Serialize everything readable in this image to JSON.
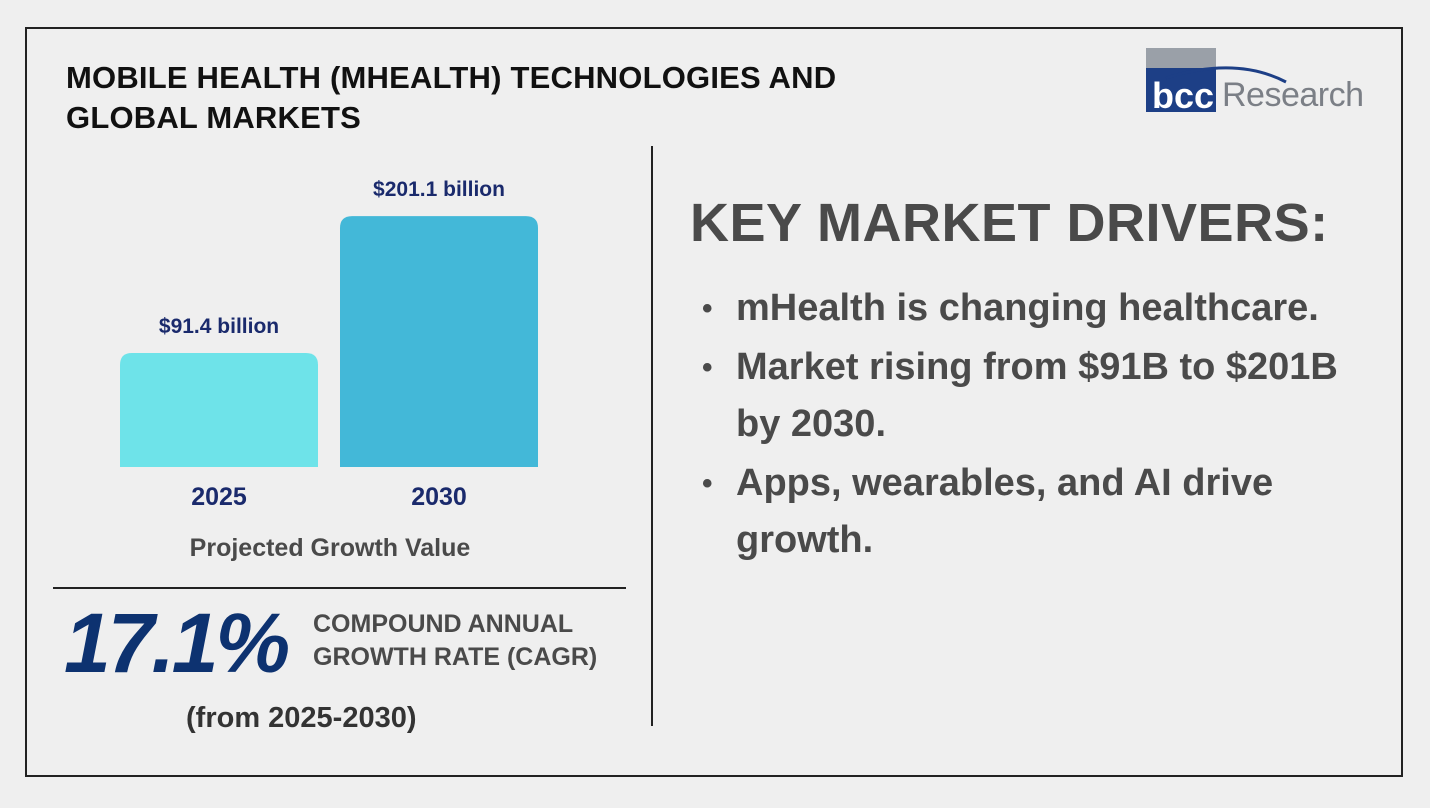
{
  "title": "MOBILE HEALTH (MHEALTH) TECHNOLOGIES AND GLOBAL MARKETS",
  "logo": {
    "brand_mark": "bcc",
    "brand_word": "Research"
  },
  "chart_data": {
    "type": "bar",
    "categories": [
      "2025",
      "2030"
    ],
    "values": [
      91.4,
      201.1
    ],
    "value_labels": [
      "$91.4 billion",
      "$201.1 billion"
    ],
    "unit": "billion USD",
    "title": "Projected Growth Value",
    "xlabel": "",
    "ylabel": "",
    "ylim": [
      0,
      210
    ],
    "grid": false,
    "colors": [
      "#6ee3e9",
      "#43b8d8"
    ]
  },
  "cagr": {
    "value": "17.1%",
    "label_line1": "COMPOUND ANNUAL",
    "label_line2": "GROWTH RATE (CAGR)",
    "range": "(from 2025-2030)"
  },
  "drivers": {
    "heading": "KEY MARKET DRIVERS:",
    "bullet_symbol": "•",
    "items": [
      "mHealth is changing healthcare.",
      "Market rising from $91B to $201B by 2030.",
      "Apps, wearables, and AI drive growth."
    ]
  },
  "colors": {
    "accent_dark": "#0d3270",
    "value_text": "#1a2a6c",
    "body_text": "#4a4a4a"
  }
}
